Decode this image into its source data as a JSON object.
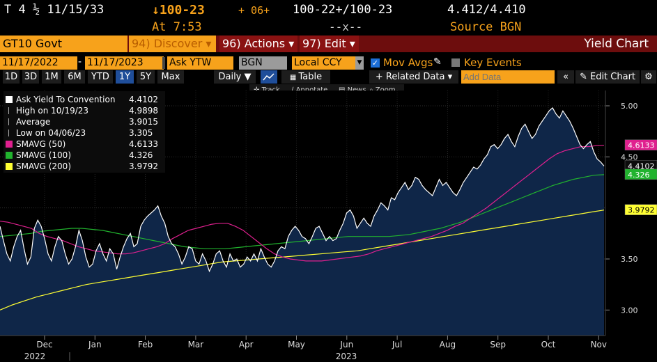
{
  "header": {
    "ticker": "T 4 ½ 11/15/33",
    "price": "↓100-23",
    "change": "+ 06+",
    "bid_ask": "100-22+/100-23",
    "yld": "4.412/4.410",
    "at_time": "At 7:53",
    "size": "--x--",
    "source": "Source BGN"
  },
  "toolbar": {
    "security": "GT10 Govt",
    "discover": "94) Discover ▾",
    "actions": "96) Actions ▾",
    "edit": "97) Edit ▾",
    "title": "Yield Chart"
  },
  "controls": {
    "date_from": "11/17/2022",
    "date_sep": "-",
    "date_to": "11/17/2023",
    "field": "Ask YTW",
    "source": "BGN",
    "currency": "Local CCY",
    "mov_avgs": "Mov Avgs",
    "key_events": "Key Events"
  },
  "periods": [
    "1D",
    "3D",
    "1M",
    "6M",
    "YTD",
    "1Y",
    "5Y",
    "Max"
  ],
  "selected_period": "1Y",
  "frequency": "Daily ▼",
  "table_label": "Table",
  "related_data": "+ Related Data ▾",
  "add_data_placeholder": "Add Data",
  "edit_chart": "Edit Chart",
  "subtools": [
    "Track",
    "Annotate",
    "News",
    "Zoom"
  ],
  "legend": [
    {
      "label": "Ask Yield To Convention",
      "value": "4.4102",
      "color": "#ffffff"
    },
    {
      "label": "High on 10/19/23",
      "value": "4.9898",
      "color": ""
    },
    {
      "label": "Average",
      "value": "3.9015",
      "color": ""
    },
    {
      "label": "Low on 04/06/23",
      "value": "3.305",
      "color": ""
    },
    {
      "label": "SMAVG (50)",
      "value": "4.6133",
      "color": "#e0208f"
    },
    {
      "label": "SMAVG (100)",
      "value": "4.326",
      "color": "#21b32e"
    },
    {
      "label": "SMAVG (200)",
      "value": "3.9792",
      "color": "#ffff33"
    }
  ],
  "chart_data": {
    "type": "line",
    "x_labels": [
      "Dec",
      "Jan",
      "Feb",
      "Mar",
      "Apr",
      "May",
      "Jun",
      "Jul",
      "Aug",
      "Sep",
      "Oct",
      "Nov"
    ],
    "year_labels": [
      "2022",
      "2023"
    ],
    "ylim": [
      2.75,
      5.15
    ],
    "y_ticks": [
      "5.00",
      "4.50",
      "3.50",
      "3.00"
    ],
    "grid": true,
    "series": [
      {
        "name": "Ask Yield To Convention",
        "color": "#ffffff",
        "values": [
          3.82,
          3.68,
          3.55,
          3.48,
          3.62,
          3.72,
          3.78,
          3.6,
          3.45,
          3.52,
          3.8,
          3.88,
          3.82,
          3.7,
          3.55,
          3.48,
          3.62,
          3.72,
          3.68,
          3.55,
          3.45,
          3.5,
          3.62,
          3.78,
          3.68,
          3.52,
          3.42,
          3.45,
          3.58,
          3.65,
          3.55,
          3.48,
          3.6,
          3.55,
          3.4,
          3.52,
          3.62,
          3.7,
          3.75,
          3.62,
          3.65,
          3.82,
          3.88,
          3.92,
          3.95,
          3.98,
          4.02,
          3.92,
          3.85,
          3.72,
          3.65,
          3.62,
          3.55,
          3.45,
          3.52,
          3.62,
          3.6,
          3.48,
          3.45,
          3.55,
          3.48,
          3.38,
          3.45,
          3.55,
          3.58,
          3.48,
          3.42,
          3.55,
          3.48,
          3.5,
          3.42,
          3.45,
          3.52,
          3.48,
          3.55,
          3.48,
          3.6,
          3.52,
          3.45,
          3.42,
          3.48,
          3.58,
          3.62,
          3.6,
          3.72,
          3.78,
          3.82,
          3.78,
          3.72,
          3.7,
          3.65,
          3.72,
          3.8,
          3.82,
          3.75,
          3.68,
          3.72,
          3.68,
          3.7,
          3.78,
          3.85,
          3.95,
          3.98,
          3.92,
          3.8,
          3.85,
          3.9,
          3.85,
          3.82,
          3.92,
          3.98,
          4.05,
          4.02,
          3.98,
          4.1,
          4.08,
          4.15,
          4.2,
          4.25,
          4.18,
          4.22,
          4.3,
          4.28,
          4.22,
          4.18,
          4.15,
          4.12,
          4.2,
          4.28,
          4.22,
          4.25,
          4.2,
          4.15,
          4.12,
          4.18,
          4.25,
          4.3,
          4.35,
          4.4,
          4.38,
          4.42,
          4.48,
          4.52,
          4.6,
          4.62,
          4.58,
          4.62,
          4.68,
          4.72,
          4.65,
          4.6,
          4.7,
          4.78,
          4.82,
          4.75,
          4.68,
          4.72,
          4.8,
          4.85,
          4.9,
          4.95,
          4.98,
          4.92,
          4.88,
          4.95,
          4.9,
          4.85,
          4.78,
          4.7,
          4.62,
          4.58,
          4.62,
          4.65,
          4.55,
          4.48,
          4.45,
          4.41
        ]
      },
      {
        "name": "SMAVG (50)",
        "color": "#e0208f",
        "values": [
          3.87,
          3.86,
          3.84,
          3.82,
          3.8,
          3.75,
          3.72,
          3.7,
          3.68,
          3.65,
          3.62,
          3.6,
          3.58,
          3.57,
          3.56,
          3.55,
          3.55,
          3.56,
          3.58,
          3.6,
          3.62,
          3.65,
          3.7,
          3.74,
          3.78,
          3.8,
          3.82,
          3.84,
          3.85,
          3.85,
          3.82,
          3.78,
          3.72,
          3.66,
          3.6,
          3.55,
          3.52,
          3.5,
          3.49,
          3.48,
          3.48,
          3.48,
          3.49,
          3.5,
          3.51,
          3.52,
          3.53,
          3.55,
          3.58,
          3.6,
          3.62,
          3.64,
          3.66,
          3.68,
          3.7,
          3.72,
          3.75,
          3.78,
          3.82,
          3.85,
          3.9,
          3.95,
          4.0,
          4.06,
          4.12,
          4.18,
          4.24,
          4.3,
          4.36,
          4.42,
          4.48,
          4.53,
          4.56,
          4.58,
          4.6,
          4.6,
          4.61,
          4.6133
        ]
      },
      {
        "name": "SMAVG (100)",
        "color": "#21b32e",
        "values": [
          3.72,
          3.73,
          3.74,
          3.75,
          3.77,
          3.78,
          3.79,
          3.8,
          3.8,
          3.79,
          3.78,
          3.76,
          3.74,
          3.72,
          3.7,
          3.68,
          3.66,
          3.64,
          3.62,
          3.61,
          3.6,
          3.6,
          3.6,
          3.61,
          3.62,
          3.63,
          3.64,
          3.65,
          3.66,
          3.67,
          3.68,
          3.69,
          3.7,
          3.71,
          3.72,
          3.72,
          3.72,
          3.72,
          3.72,
          3.73,
          3.74,
          3.76,
          3.78,
          3.8,
          3.83,
          3.86,
          3.9,
          3.94,
          3.98,
          4.02,
          4.06,
          4.1,
          4.14,
          4.18,
          4.22,
          4.25,
          4.28,
          4.3,
          4.32,
          4.326
        ]
      },
      {
        "name": "SMAVG (200)",
        "color": "#ffff33",
        "values": [
          3.0,
          3.05,
          3.09,
          3.13,
          3.16,
          3.19,
          3.22,
          3.25,
          3.27,
          3.29,
          3.31,
          3.33,
          3.35,
          3.37,
          3.39,
          3.41,
          3.43,
          3.45,
          3.47,
          3.48,
          3.49,
          3.5,
          3.51,
          3.52,
          3.53,
          3.54,
          3.55,
          3.56,
          3.57,
          3.58,
          3.6,
          3.62,
          3.64,
          3.66,
          3.68,
          3.7,
          3.72,
          3.74,
          3.76,
          3.78,
          3.8,
          3.82,
          3.84,
          3.86,
          3.88,
          3.9,
          3.92,
          3.94,
          3.96,
          3.9792
        ]
      }
    ],
    "tags": [
      {
        "value": "4.6133",
        "y": 4.6133,
        "bg": "#e0208f",
        "fg": "#ffffff"
      },
      {
        "value": "4.4102",
        "y": 4.4102,
        "bg": "#0c0c0c",
        "fg": "#ffffff"
      },
      {
        "value": "4.326",
        "y": 4.326,
        "bg": "#21b32e",
        "fg": "#ffffff"
      },
      {
        "value": "3.9792",
        "y": 3.9792,
        "bg": "#ffff33",
        "fg": "#000000"
      }
    ]
  }
}
